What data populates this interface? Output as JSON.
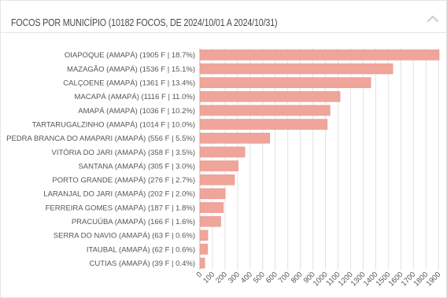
{
  "panel": {
    "title": "FOCOS POR MUNICÍPIO (10182 FOCOS, DE 2024/10/01 A 2024/10/31)"
  },
  "colors": {
    "bar": "#f0a59a",
    "bar_border": "#e8968b",
    "grid": "#e2e2e2",
    "axis": "#bbbbbb"
  },
  "chart_data": {
    "type": "bar",
    "orientation": "horizontal",
    "categories": [
      "OIAPOQUE (AMAPÁ) (1905 F | 18.7%)",
      "MAZAGÃO (AMAPÁ) (1536 F | 15.1%)",
      "CALÇOENE (AMAPÁ) (1361 F | 13.4%)",
      "MACAPÁ (AMAPÁ) (1116 F | 11.0%)",
      "AMAPÁ (AMAPÁ) (1036 F | 10.2%)",
      "TARTARUGALZINHO (AMAPÁ) (1014 F | 10.0%)",
      "PEDRA BRANCA DO AMAPARI (AMAPÁ) (556 F | 5.5%)",
      "VITÓRIA DO JARI (AMAPÁ) (358 F | 3.5%)",
      "SANTANA (AMAPÁ) (305 F | 3.0%)",
      "PORTO GRANDE (AMAPÁ) (276 F | 2.7%)",
      "LARANJAL DO JARI (AMAPÁ) (202 F | 2.0%)",
      "FERREIRA GOMES (AMAPÁ) (187 F | 1.8%)",
      "PRACUÚBA (AMAPÁ) (166 F | 1.6%)",
      "SERRA DO NAVIO (AMAPÁ) (63 F | 0.6%)",
      "ITAUBAL (AMAPÁ) (62 F | 0.6%)",
      "CUTIAS (AMAPÁ) (39 F | 0.4%)"
    ],
    "values": [
      1905,
      1536,
      1361,
      1116,
      1036,
      1014,
      556,
      358,
      305,
      276,
      202,
      187,
      166,
      63,
      62,
      39
    ],
    "x_ticks": [
      "0",
      "100",
      "200",
      "300",
      "400",
      "500",
      "600",
      "700",
      "800",
      "900",
      "1000",
      "1100",
      "1200",
      "1300",
      "1400",
      "1500",
      "1600",
      "1700",
      "1800",
      "1900"
    ],
    "xlim": [
      0,
      1905
    ],
    "grid": true
  }
}
